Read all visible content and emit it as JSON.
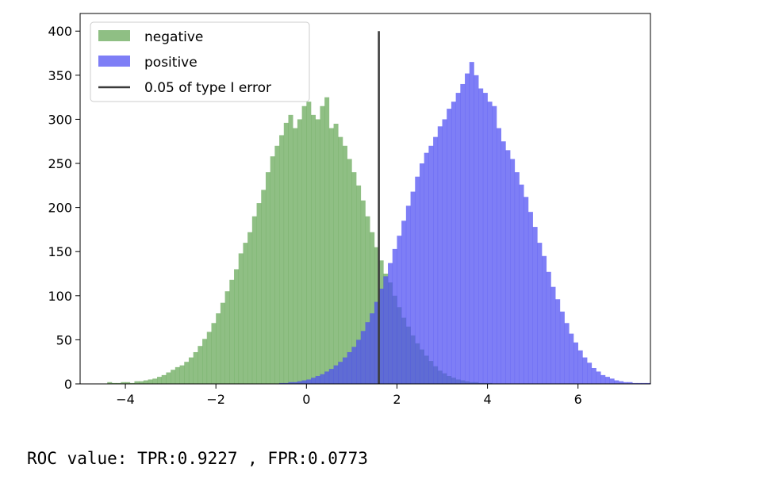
{
  "chart_data": {
    "type": "histogram",
    "title": "",
    "xlabel": "",
    "ylabel": "",
    "xlim": [
      -5.0,
      7.6
    ],
    "ylim": [
      0,
      420
    ],
    "xticks": [
      -4,
      -2,
      0,
      2,
      4,
      6
    ],
    "xtick_labels": [
      "−4",
      "−2",
      "0",
      "2",
      "4",
      "6"
    ],
    "yticks": [
      0,
      50,
      100,
      150,
      200,
      250,
      300,
      350,
      400
    ],
    "ytick_labels": [
      "0",
      "50",
      "100",
      "150",
      "200",
      "250",
      "300",
      "350",
      "400"
    ],
    "grid": false,
    "legend_position": "upper-left",
    "bin_width": 0.1,
    "series": [
      {
        "name": "negative",
        "color": "#5aa04a",
        "alpha": 0.68,
        "bin_start": -4.4,
        "counts": [
          2,
          1,
          1,
          2,
          2,
          1,
          3,
          3,
          4,
          5,
          6,
          8,
          10,
          13,
          16,
          19,
          21,
          25,
          30,
          36,
          43,
          51,
          59,
          69,
          80,
          92,
          105,
          118,
          130,
          148,
          160,
          172,
          190,
          205,
          220,
          240,
          258,
          270,
          282,
          296,
          305,
          290,
          300,
          315,
          320,
          305,
          300,
          315,
          325,
          290,
          295,
          280,
          270,
          255,
          240,
          225,
          208,
          190,
          172,
          155,
          140,
          125,
          115,
          100,
          87,
          75,
          65,
          55,
          46,
          39,
          32,
          26,
          20,
          15,
          12,
          9,
          7,
          5,
          4,
          3,
          2,
          2,
          1,
          1,
          1
        ]
      },
      {
        "name": "positive",
        "color": "#4c4cf2",
        "alpha": 0.72,
        "bin_start": -0.6,
        "counts": [
          1,
          1,
          2,
          2,
          3,
          4,
          5,
          7,
          9,
          11,
          14,
          17,
          21,
          25,
          30,
          36,
          42,
          50,
          60,
          70,
          80,
          93,
          108,
          122,
          137,
          153,
          168,
          185,
          202,
          218,
          235,
          250,
          262,
          270,
          280,
          292,
          300,
          312,
          320,
          330,
          340,
          352,
          365,
          350,
          335,
          330,
          320,
          315,
          290,
          275,
          265,
          255,
          240,
          226,
          212,
          195,
          178,
          160,
          145,
          127,
          110,
          96,
          82,
          69,
          57,
          47,
          38,
          30,
          24,
          18,
          14,
          10,
          8,
          6,
          4,
          3,
          2,
          2,
          1,
          1,
          1,
          1
        ]
      }
    ],
    "threshold": {
      "name": "0.05 of type I error",
      "x": 1.6,
      "y_top": 400,
      "color": "#3a3a3a"
    }
  },
  "caption": {
    "text": "ROC value: TPR:0.9227 , FPR:0.0773"
  }
}
